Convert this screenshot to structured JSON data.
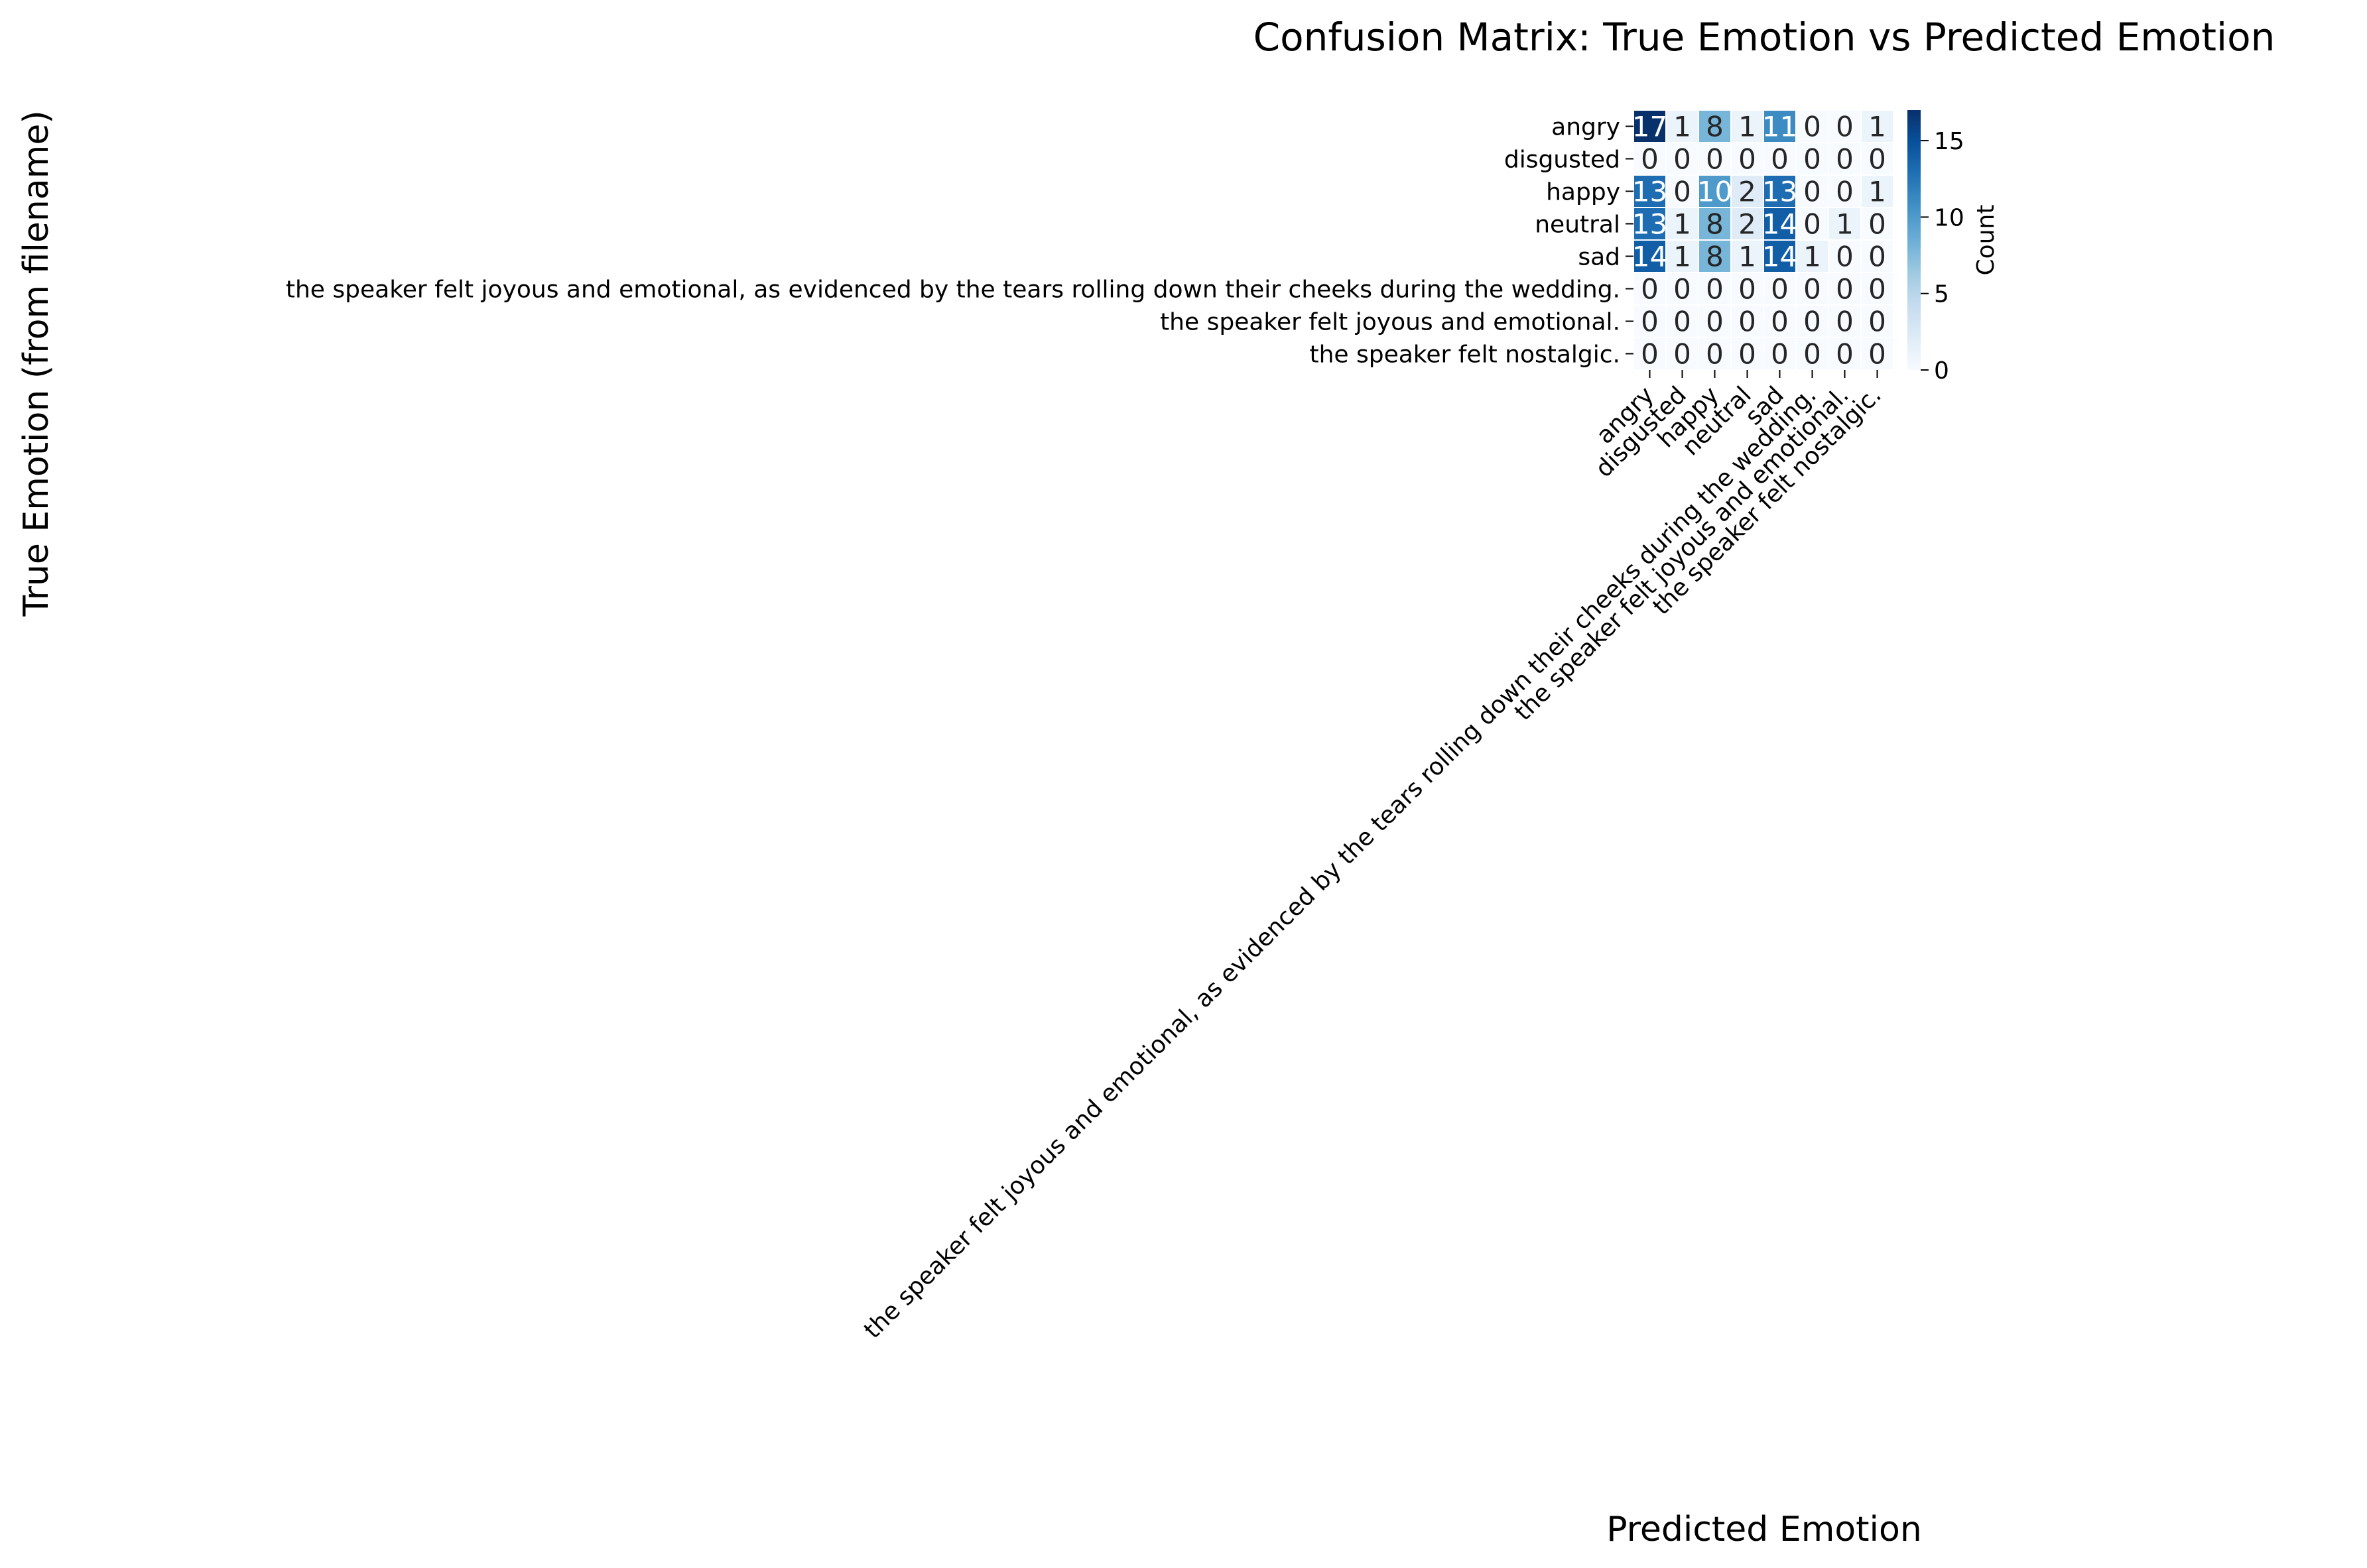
{
  "chart_data": {
    "type": "heatmap",
    "title": "Confusion Matrix: True Emotion vs Predicted Emotion",
    "xlabel": "Predicted Emotion",
    "ylabel": "True Emotion (from filename)",
    "row_labels": [
      "angry",
      "disgusted",
      "happy",
      "neutral",
      "sad",
      "the speaker felt joyous and emotional, as evidenced by the tears rolling down their cheeks during the wedding.",
      "the speaker felt joyous and emotional.",
      "the speaker felt nostalgic."
    ],
    "col_labels": [
      "angry",
      "disgusted",
      "happy",
      "neutral",
      "sad",
      "the speaker felt joyous and emotional, as evidenced by the tears rolling down their cheeks during the wedding.",
      "the speaker felt joyous and emotional.",
      "the speaker felt nostalgic."
    ],
    "values": [
      [
        17,
        1,
        8,
        1,
        11,
        0,
        0,
        1
      ],
      [
        0,
        0,
        0,
        0,
        0,
        0,
        0,
        0
      ],
      [
        13,
        0,
        10,
        2,
        13,
        0,
        0,
        1
      ],
      [
        13,
        1,
        8,
        2,
        14,
        0,
        1,
        0
      ],
      [
        14,
        1,
        8,
        1,
        14,
        1,
        0,
        0
      ],
      [
        0,
        0,
        0,
        0,
        0,
        0,
        0,
        0
      ],
      [
        0,
        0,
        0,
        0,
        0,
        0,
        0,
        0
      ],
      [
        0,
        0,
        0,
        0,
        0,
        0,
        0,
        0
      ]
    ],
    "colorbar": {
      "label": "Count",
      "range": [
        0,
        17
      ],
      "ticks": [
        0,
        5,
        10,
        15
      ]
    },
    "colormap": "Blues",
    "colors": {
      "low": "#f7fbff",
      "high": "#08306b",
      "cell_border": "#ffffff",
      "text_dark": "#262626",
      "text_light": "#ffffff"
    }
  }
}
